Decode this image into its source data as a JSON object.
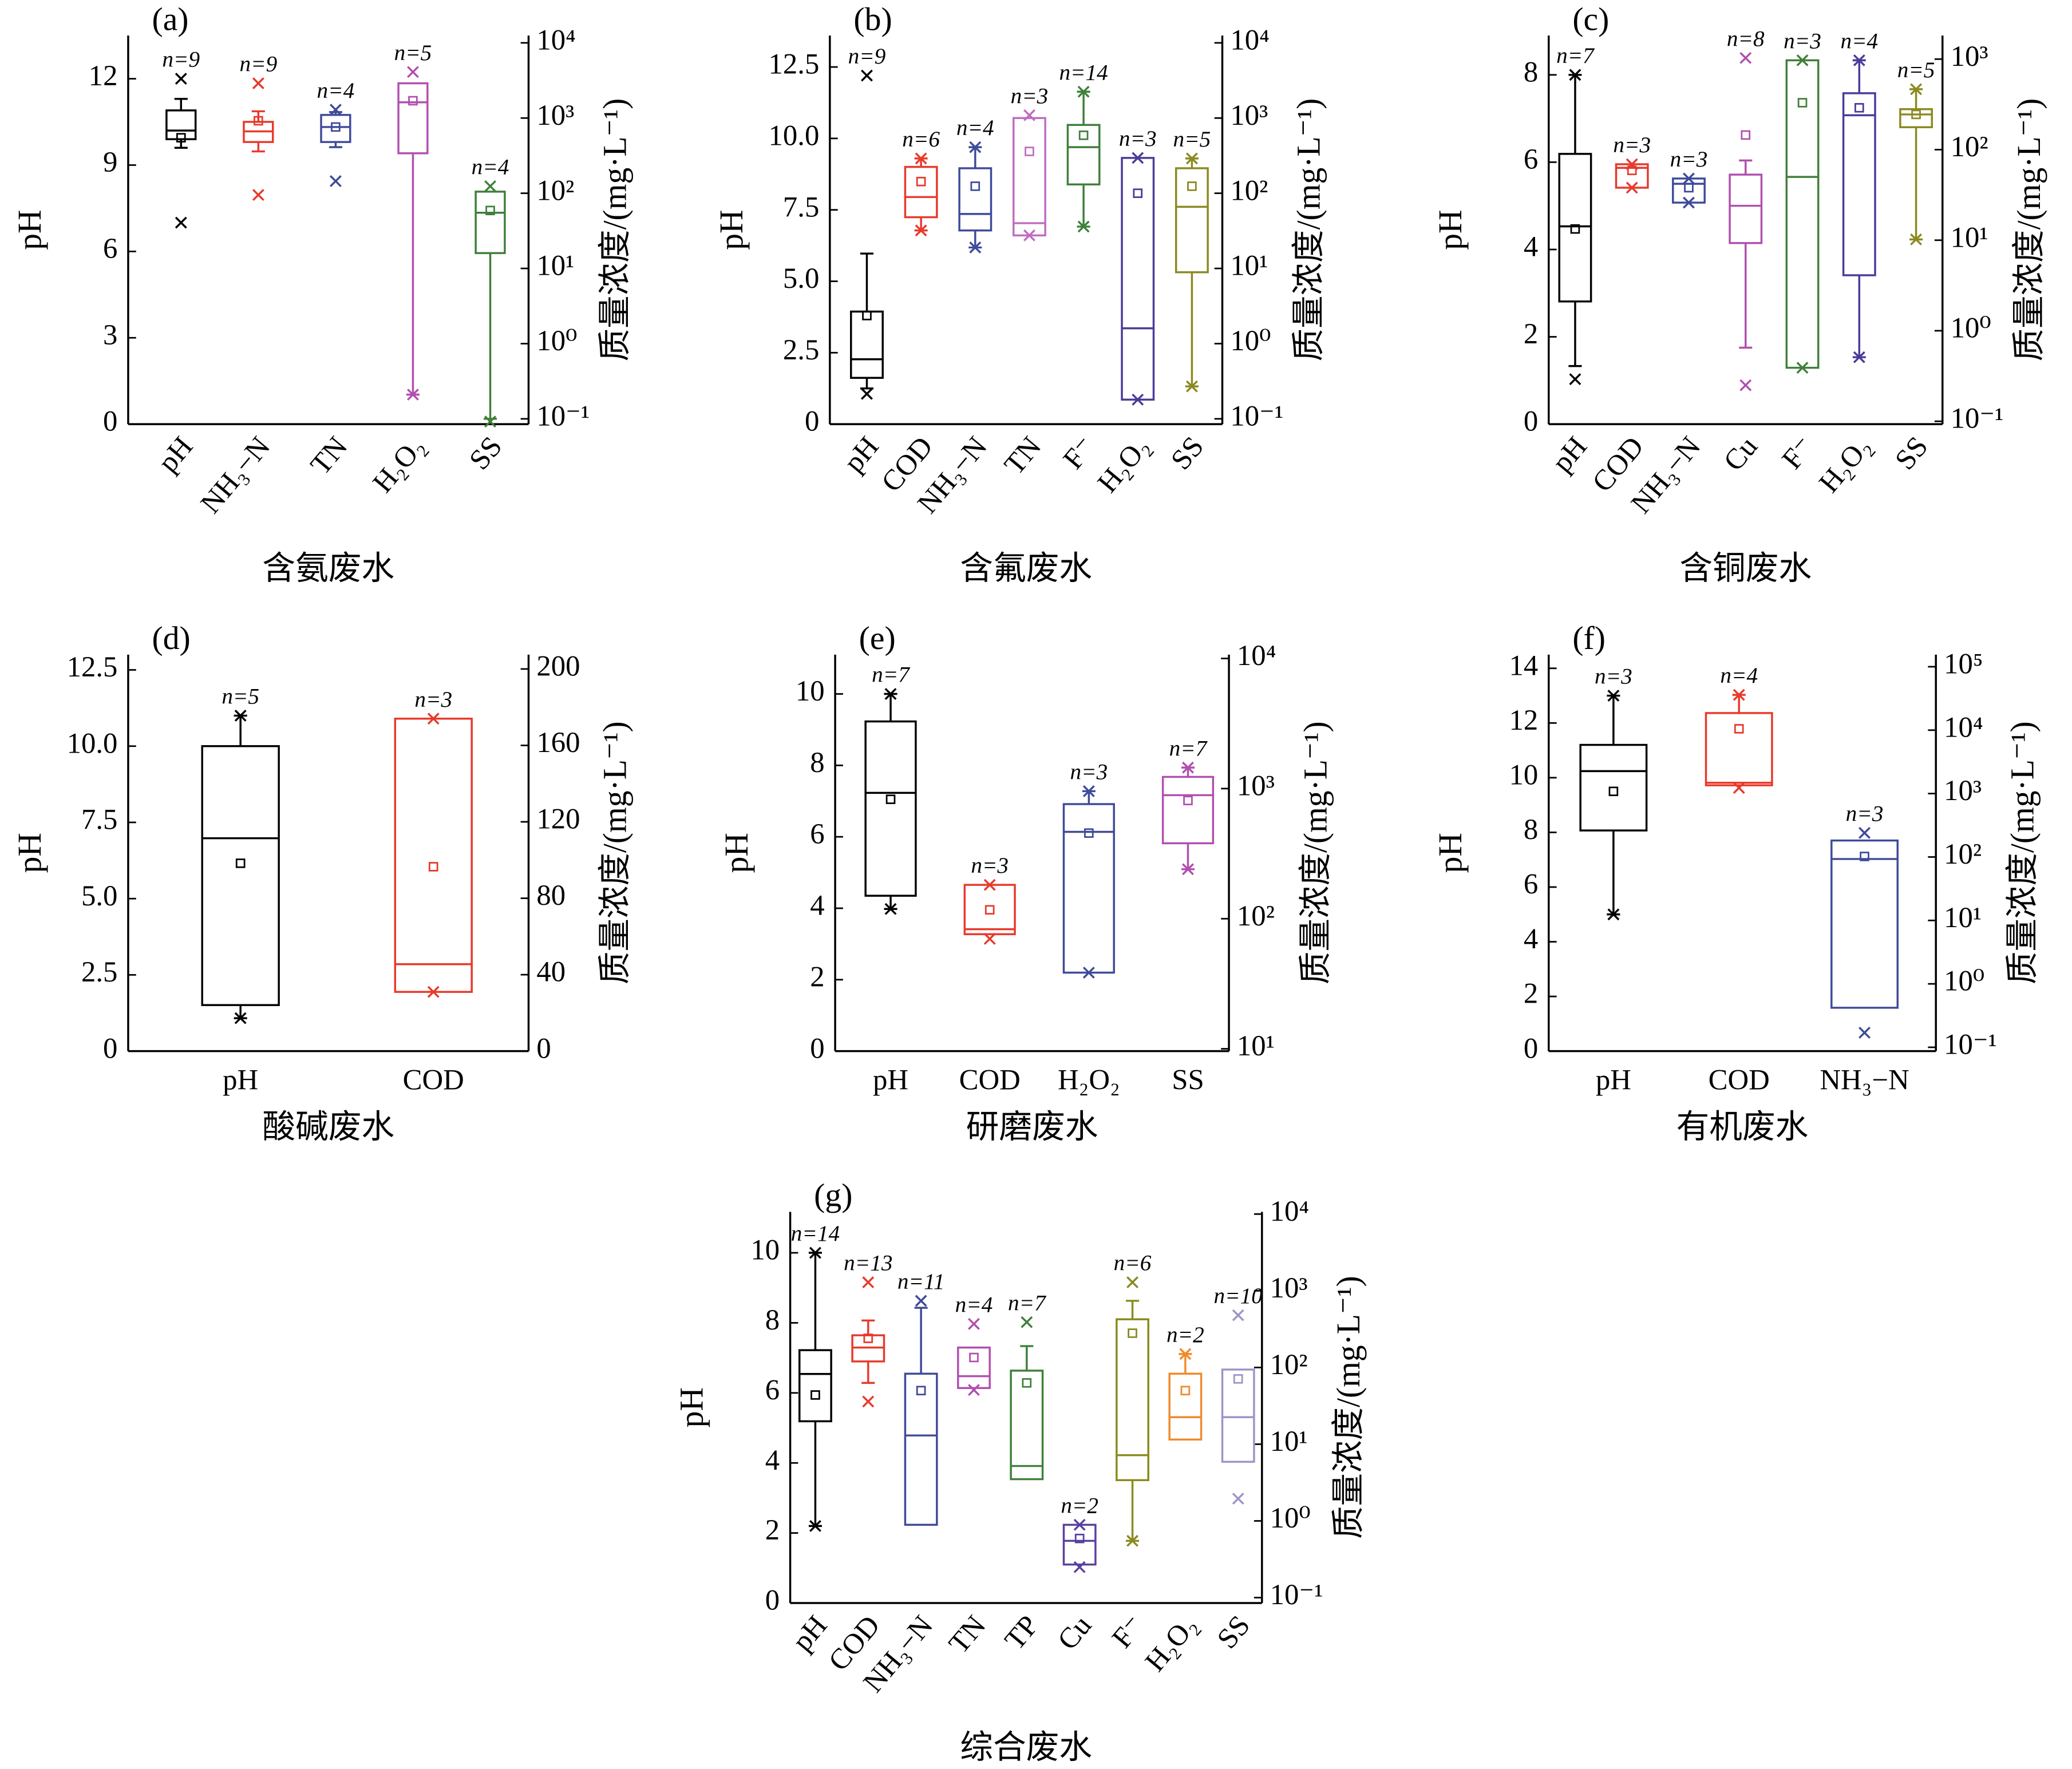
{
  "chart_data": [
    {
      "type": "box",
      "label": "(a)",
      "xlabel": "含氨废水",
      "ylabel": "pH",
      "y2label": "质量浓度/(mg·L⁻¹)",
      "ylim": [
        0,
        13.5
      ],
      "yticks": [
        0,
        3,
        6,
        9,
        12
      ],
      "y2log": true,
      "y2lim": [
        0.085,
        12500
      ],
      "y2ticks": [
        {
          "value": 0.1,
          "label": "10⁻¹"
        },
        {
          "value": 1,
          "label": "10⁰"
        },
        {
          "value": 10,
          "label": "10¹"
        },
        {
          "value": 100,
          "label": "10²"
        },
        {
          "value": 1000,
          "label": "10³"
        },
        {
          "value": 10000,
          "label": "10⁴"
        }
      ],
      "categories": [
        "pH",
        "NH₃−N",
        "TN",
        "H₂O₂",
        "SS"
      ],
      "boxes": [
        {
          "color": "#000000",
          "axis": "y",
          "n_label": "n=9",
          "min": 7.0,
          "whisker_low": 9.6,
          "q1": 9.9,
          "median": 10.2,
          "q3": 10.9,
          "whisker_high": 11.3,
          "max": 12.0,
          "mean": 9.95
        },
        {
          "color": "#e8392b",
          "axis": "y2",
          "n_label": "n=9",
          "min": 95,
          "whisker_low": 360,
          "q1": 480,
          "median": 665,
          "q3": 890,
          "whisker_high": 1230,
          "max": 2900,
          "mean": 920
        },
        {
          "color": "#3e4a9a",
          "axis": "y2",
          "n_label": "n=4",
          "min": 145,
          "whisker_low": 410,
          "q1": 480,
          "median": 760,
          "q3": 1100,
          "whisker_high": 1200,
          "max": 1290,
          "mean": 760
        },
        {
          "color": "#b14fae",
          "axis": "y2",
          "n_label": "n=5",
          "min": 0.21,
          "whisker_low": 0.21,
          "q1": 340,
          "median": 1620,
          "q3": 2900,
          "max": 4100,
          "mean": 1700
        },
        {
          "color": "#3f7f3a",
          "axis": "y2",
          "n_label": "n=4",
          "min": 0.092,
          "whisker_low": 0.1,
          "q1": 16,
          "median": 55,
          "q3": 105,
          "max": 124,
          "mean": 59
        }
      ]
    },
    {
      "type": "box",
      "label": "(b)",
      "xlabel": "含氟废水",
      "ylabel": "pH",
      "y2label": "质量浓度/(mg·L⁻¹)",
      "ylim": [
        0,
        13.6
      ],
      "yticks": [
        0,
        2.5,
        {
          "value": 5,
          "label": "5.0"
        },
        7.5,
        {
          "value": 10,
          "label": "10.0"
        },
        12.5
      ],
      "y2log": true,
      "y2lim": [
        0.085,
        12500
      ],
      "y2ticks": [
        {
          "value": 0.1,
          "label": "10⁻¹"
        },
        {
          "value": 1,
          "label": "10⁰"
        },
        {
          "value": 10,
          "label": "10¹"
        },
        {
          "value": 100,
          "label": "10²"
        },
        {
          "value": 1000,
          "label": "10³"
        },
        {
          "value": 10000,
          "label": "10⁴"
        }
      ],
      "categories": [
        "pH",
        "COD",
        "NH₃−N",
        "TN",
        "F⁻",
        "H₂O₂",
        "SS"
      ],
      "boxes": [
        {
          "color": "#000000",
          "axis": "y",
          "n_label": "n=9",
          "min": 1.06,
          "whisker_low": 1.25,
          "q1": 1.62,
          "median": 2.27,
          "q3": 3.94,
          "whisker_high": 5.97,
          "max": 12.2,
          "mean": 3.8
        },
        {
          "color": "#e8392b",
          "axis": "y2",
          "n_label": "n=6",
          "min": 32,
          "whisker_low": 32,
          "q1": 48,
          "median": 89,
          "q3": 224,
          "whisker_high": 290,
          "max": 290,
          "mean": 143
        },
        {
          "color": "#3e4a9a",
          "axis": "y2",
          "n_label": "n=4",
          "min": 19,
          "whisker_low": 19,
          "q1": 32,
          "median": 53,
          "q3": 215,
          "whisker_high": 410,
          "max": 410,
          "mean": 124
        },
        {
          "color": "#c06cc0",
          "axis": "y2",
          "n_label": "n=3",
          "min": 27.5,
          "q1": 27.5,
          "median": 40,
          "q3": 1000,
          "max": 1090,
          "mean": 360
        },
        {
          "color": "#3f7f3a",
          "axis": "y2",
          "n_label": "n=14",
          "min": 36,
          "whisker_low": 36,
          "q1": 131,
          "median": 410,
          "q3": 810,
          "whisker_high": 2240,
          "max": 2240,
          "mean": 590
        },
        {
          "color": "#4b3a9a",
          "axis": "y2",
          "n_label": "n=3",
          "min": 0.18,
          "q1": 0.18,
          "median": 1.6,
          "q3": 295,
          "max": 295,
          "mean": 100
        },
        {
          "color": "#8a8a20",
          "axis": "y2",
          "n_label": "n=5",
          "min": 0.27,
          "whisker_low": 0.27,
          "q1": 8.9,
          "median": 66,
          "q3": 215,
          "whisker_high": 290,
          "max": 290,
          "mean": 124
        }
      ]
    },
    {
      "type": "box",
      "label": "(c)",
      "xlabel": "含铜废水",
      "ylabel": "pH",
      "y2label": "质量浓度/(mg·L⁻¹)",
      "ylim": [
        0,
        8.9
      ],
      "yticks": [
        0,
        2,
        4,
        6,
        8
      ],
      "y2log": true,
      "y2lim": [
        0.093,
        1820
      ],
      "y2ticks": [
        {
          "value": 0.1,
          "label": "10⁻¹"
        },
        {
          "value": 1,
          "label": "10⁰"
        },
        {
          "value": 10,
          "label": "10¹"
        },
        {
          "value": 100,
          "label": "10²"
        },
        {
          "value": 1000,
          "label": "10³"
        }
      ],
      "categories": [
        "pH",
        "COD",
        "NH₃−N",
        "Cu",
        "F⁻",
        "H₂O₂",
        "SS"
      ],
      "boxes": [
        {
          "color": "#000000",
          "axis": "y",
          "n_label": "n=7",
          "min": 1.03,
          "whisker_low": 1.33,
          "q1": 2.81,
          "median": 4.53,
          "q3": 6.19,
          "whisker_high": 8.0,
          "max": 8.0,
          "mean": 4.47
        },
        {
          "color": "#e8392b",
          "axis": "y2",
          "n_label": "n=3",
          "min": 38,
          "q1": 38,
          "median": 63,
          "q3": 69,
          "max": 69,
          "mean": 59
        },
        {
          "color": "#3e4a9a",
          "axis": "y2",
          "n_label": "n=3",
          "min": 26,
          "q1": 26,
          "median": 42,
          "q3": 48,
          "max": 48,
          "mean": 38
        },
        {
          "color": "#b14fae",
          "axis": "y2",
          "n_label": "n=8",
          "min": 0.25,
          "whisker_low": 0.65,
          "q1": 9.3,
          "median": 24,
          "q3": 53,
          "whisker_high": 76,
          "max": 1030,
          "mean": 145
        },
        {
          "color": "#3f7f3a",
          "axis": "y2",
          "n_label": "n=3",
          "min": 0.39,
          "q1": 0.39,
          "median": 50,
          "q3": 970,
          "max": 970,
          "mean": 330
        },
        {
          "color": "#4b3a9a",
          "axis": "y2",
          "n_label": "n=4",
          "min": 0.51,
          "whisker_low": 0.51,
          "q1": 4.1,
          "median": 240,
          "q3": 420,
          "whisker_high": 970,
          "max": 970,
          "mean": 290
        },
        {
          "color": "#8a8a20",
          "axis": "y2",
          "n_label": "n=5",
          "min": 10.2,
          "whisker_low": 10.2,
          "q1": 177,
          "median": 245,
          "q3": 280,
          "whisker_high": 465,
          "max": 465,
          "mean": 245
        }
      ]
    },
    {
      "type": "box",
      "label": "(d)",
      "xlabel": "酸碱废水",
      "ylabel": "pH",
      "y2label": "质量浓度/(mg·L⁻¹)",
      "ylim": [
        0,
        13
      ],
      "yticks": [
        0,
        2.5,
        {
          "value": 5,
          "label": "5.0"
        },
        7.5,
        {
          "value": 10,
          "label": "10.0"
        },
        12.5
      ],
      "y2log": false,
      "y2lim": [
        0,
        207.5
      ],
      "y2ticks": [
        0,
        40,
        80,
        120,
        160,
        200
      ],
      "categories": [
        "pH",
        "COD"
      ],
      "boxes": [
        {
          "color": "#000000",
          "axis": "y",
          "n_label": "n=5",
          "min": 1.08,
          "whisker_low": 1.08,
          "q1": 1.51,
          "median": 6.98,
          "q3": 10.0,
          "whisker_high": 11.0,
          "max": 11.0,
          "mean": 6.16
        },
        {
          "color": "#e8392b",
          "axis": "y2",
          "n_label": "n=3",
          "min": 31,
          "q1": 31,
          "median": 45.5,
          "q3": 174,
          "max": 174,
          "mean": 96.5
        }
      ]
    },
    {
      "type": "box",
      "label": "(e)",
      "xlabel": "研磨废水",
      "ylabel": "pH",
      "y2label": "质量浓度/(mg·L⁻¹)",
      "ylim": [
        0,
        11.1
      ],
      "yticks": [
        0,
        2,
        4,
        6,
        8,
        10
      ],
      "y2log": true,
      "y2lim": [
        9.6,
        10700
      ],
      "y2ticks": [
        {
          "value": 10,
          "label": "10¹"
        },
        {
          "value": 100,
          "label": "10²"
        },
        {
          "value": 1000,
          "label": "10³"
        },
        {
          "value": 10000,
          "label": "10⁴"
        }
      ],
      "categories": [
        "pH",
        "COD",
        "H₂O₂",
        "SS"
      ],
      "boxes": [
        {
          "color": "#000000",
          "axis": "y",
          "n_label": "n=7",
          "min": 3.98,
          "whisker_low": 3.98,
          "q1": 4.35,
          "median": 7.23,
          "q3": 9.23,
          "whisker_high": 10.0,
          "max": 10.0,
          "mean": 7.05
        },
        {
          "color": "#e8392b",
          "axis": "y2",
          "n_label": "n=3",
          "min": 70,
          "q1": 76,
          "median": 83,
          "q3": 182,
          "max": 182,
          "mean": 117
        },
        {
          "color": "#3e4a9a",
          "axis": "y2",
          "n_label": "n=3",
          "min": 38.5,
          "q1": 38.5,
          "median": 465,
          "q3": 760,
          "whisker_high": 955,
          "max": 955,
          "mean": 455
        },
        {
          "color": "#b14fae",
          "axis": "y2",
          "n_label": "n=7",
          "min": 240,
          "whisker_low": 240,
          "q1": 380,
          "median": 890,
          "q3": 1230,
          "whisker_high": 1450,
          "max": 1450,
          "mean": 810
        }
      ]
    },
    {
      "type": "box",
      "label": "(f)",
      "xlabel": "有机废水",
      "ylabel": "pH",
      "y2label": "质量浓度/(mg·L⁻¹)",
      "ylim": [
        0,
        14.5
      ],
      "yticks": [
        0,
        2,
        4,
        6,
        8,
        10,
        12,
        14
      ],
      "y2log": true,
      "y2lim": [
        0.087,
        155000
      ],
      "y2ticks": [
        {
          "value": 0.1,
          "label": "10⁻¹"
        },
        {
          "value": 1,
          "label": "10⁰"
        },
        {
          "value": 10,
          "label": "10¹"
        },
        {
          "value": 100,
          "label": "10²"
        },
        {
          "value": 1000,
          "label": "10³"
        },
        {
          "value": 10000,
          "label": "10⁴"
        },
        {
          "value": 100000,
          "label": "10⁵"
        }
      ],
      "categories": [
        "pH",
        "COD",
        "NH₃−N"
      ],
      "boxes": [
        {
          "color": "#000000",
          "axis": "y",
          "n_label": "n=3",
          "min": 5.0,
          "whisker_low": 5.0,
          "q1": 8.07,
          "median": 10.24,
          "q3": 11.2,
          "whisker_high": 13.0,
          "max": 13.0,
          "mean": 9.5
        },
        {
          "color": "#e8392b",
          "axis": "y2",
          "n_label": "n=4",
          "min": 1230,
          "q1": 1350,
          "median": 1480,
          "q3": 18600,
          "whisker_high": 36000,
          "max": 36000,
          "mean": 10500
        },
        {
          "color": "#3e4a9a",
          "axis": "y2",
          "n_label": "n=3",
          "min": 0.17,
          "q1": 0.42,
          "median": 93,
          "q3": 182,
          "max": 240,
          "mean": 102
        }
      ]
    },
    {
      "type": "box",
      "label": "(g)",
      "xlabel": "综合废水",
      "ylabel": "pH",
      "y2label": "质量浓度/(mg·L⁻¹)",
      "ylim": [
        0,
        11.17
      ],
      "yticks": [
        0,
        2,
        4,
        6,
        8,
        10
      ],
      "y2log": true,
      "y2lim": [
        0.085,
        10700
      ],
      "y2ticks": [
        {
          "value": 0.1,
          "label": "10⁻¹"
        },
        {
          "value": 1,
          "label": "10⁰"
        },
        {
          "value": 10,
          "label": "10¹"
        },
        {
          "value": 100,
          "label": "10²"
        },
        {
          "value": 1000,
          "label": "10³"
        },
        {
          "value": 10000,
          "label": "10⁴"
        }
      ],
      "categories": [
        "pH",
        "COD",
        "NH₃−N",
        "TN",
        "TP",
        "Cu",
        "F⁻",
        "H₂O₂",
        "SS"
      ],
      "boxes": [
        {
          "color": "#000000",
          "axis": "y",
          "n_label": "n=14",
          "min": 2.2,
          "whisker_low": 2.2,
          "q1": 5.19,
          "median": 6.54,
          "q3": 7.22,
          "whisker_high": 10.0,
          "max": 10.0,
          "mean": 5.94
        },
        {
          "color": "#e8392b",
          "axis": "y2",
          "n_label": "n=13",
          "min": 36,
          "whisker_low": 63,
          "q1": 120,
          "median": 182,
          "q3": 263,
          "whisker_high": 410,
          "max": 1290,
          "mean": 240
        },
        {
          "color": "#3e4a9a",
          "axis": "y2",
          "n_label": "n=11",
          "q1": 0.89,
          "median": 13,
          "q3": 83,
          "whisker_high": 600,
          "max": 740,
          "mean": 50
        },
        {
          "color": "#b14fae",
          "axis": "y2",
          "n_label": "n=4",
          "min": 51,
          "q1": 54,
          "median": 77,
          "q3": 182,
          "max": 370,
          "mean": 135
        },
        {
          "color": "#3f7f3a",
          "axis": "y2",
          "n_label": "n=7",
          "q1": 3.5,
          "median": 5.2,
          "q3": 91,
          "whisker_high": 190,
          "max": 390,
          "mean": 63
        },
        {
          "color": "#5b3fa0",
          "axis": "y2",
          "n_label": "n=2",
          "min": 0.25,
          "q1": 0.27,
          "median": 0.55,
          "q3": 0.89,
          "max": 0.89,
          "mean": 0.59
        },
        {
          "color": "#8a8a20",
          "axis": "y2",
          "n_label": "n=6",
          "min": 0.55,
          "whisker_low": 0.55,
          "q1": 3.4,
          "median": 7.2,
          "q3": 425,
          "whisker_high": 740,
          "max": 1290,
          "mean": 280
        },
        {
          "color": "#f08a2a",
          "axis": "y2",
          "n_label": "n=2",
          "q1": 11.5,
          "median": 22.5,
          "q3": 83,
          "whisker_high": 150,
          "max": 150,
          "mean": 50
        },
        {
          "color": "#9a96c8",
          "axis": "y2",
          "n_label": "n=10",
          "min": 1.95,
          "q1": 5.9,
          "median": 22.5,
          "q3": 94,
          "max": 480,
          "mean": 71
        }
      ]
    }
  ]
}
